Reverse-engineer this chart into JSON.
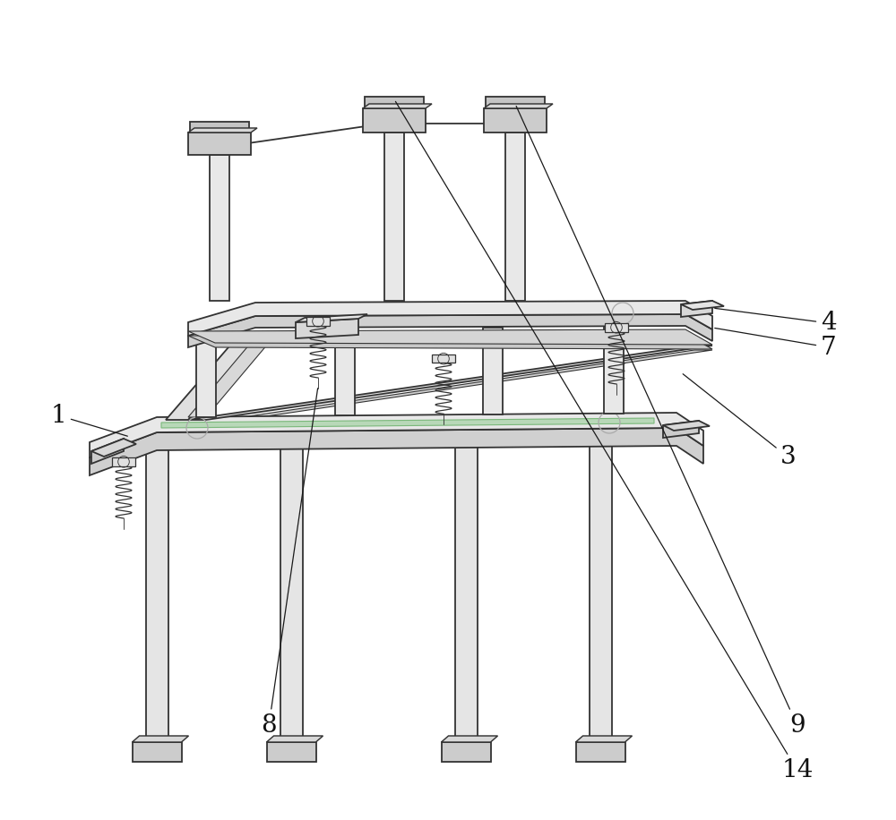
{
  "background_color": "#ffffff",
  "line_color": "#333333",
  "lw_main": 1.3,
  "lw_thin": 0.8,
  "fc_plate": "#e8e8e8",
  "fc_dark": "#cccccc",
  "fc_light": "#f0f0f0",
  "fc_green": "#b8d8b8",
  "label_fontsize": 20,
  "annotation_lw": 0.9
}
